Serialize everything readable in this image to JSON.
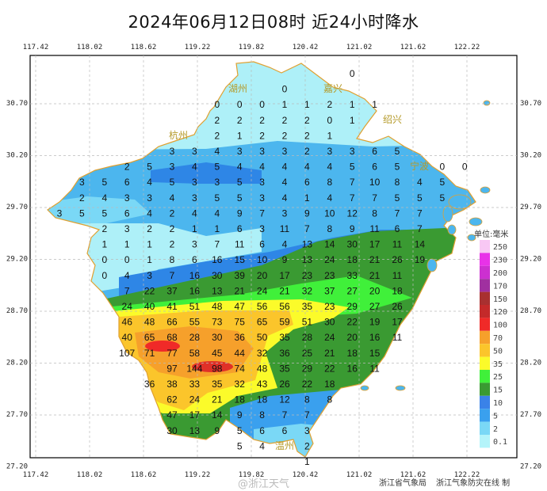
{
  "title": "2024年06月12日08时  近24小时降水",
  "lon_ticks": [
    "117.42",
    "118.02",
    "118.62",
    "119.22",
    "119.82",
    "120.42",
    "121.02",
    "121.62",
    "122.22"
  ],
  "lat_ticks": [
    "30.70",
    "30.20",
    "29.70",
    "29.20",
    "28.70",
    "28.20",
    "27.70",
    "27.20"
  ],
  "cities": [
    {
      "name": "湖州"
    },
    {
      "name": "嘉兴"
    },
    {
      "name": "杭州"
    },
    {
      "name": "绍兴"
    },
    {
      "name": "宁波"
    },
    {
      "name": "温州"
    }
  ],
  "legend": {
    "title": "单位:毫米",
    "items": [
      {
        "label": "250",
        "color": "#f8c8f4"
      },
      {
        "label": "230",
        "color": "#e832e8"
      },
      {
        "label": "200",
        "color": "#cc30d0"
      },
      {
        "label": "170",
        "color": "#a030a0"
      },
      {
        "label": "150",
        "color": "#a83030"
      },
      {
        "label": "120",
        "color": "#c42a2a"
      },
      {
        "label": "100",
        "color": "#f02a28"
      },
      {
        "label": "70",
        "color": "#f6a02b"
      },
      {
        "label": "50",
        "color": "#fbc52b"
      },
      {
        "label": "35",
        "color": "#fbfb2a"
      },
      {
        "label": "25",
        "color": "#40f03a"
      },
      {
        "label": "15",
        "color": "#3a9a32"
      },
      {
        "label": "10",
        "color": "#3a82e8"
      },
      {
        "label": "5",
        "color": "#3aa0ee"
      },
      {
        "label": "2",
        "color": "#7ad8f6"
      },
      {
        "label": "0.1",
        "color": "#b4f4fa"
      }
    ]
  },
  "grid_values": [
    {
      "from": 13,
      "v": [
        0
      ]
    },
    {
      "from": 10,
      "v": [
        0
      ]
    },
    {
      "from": 7,
      "v": [
        0,
        0,
        0,
        1,
        1,
        2,
        1,
        1
      ]
    },
    {
      "from": 7,
      "v": [
        2,
        2,
        2,
        2,
        2,
        0,
        1
      ]
    },
    {
      "from": 7,
      "v": [
        2,
        1,
        2,
        2,
        2,
        1
      ]
    },
    {
      "from": 5,
      "v": [
        3,
        3,
        4,
        3,
        3,
        3,
        2,
        3,
        3,
        6,
        5
      ]
    },
    {
      "from": 3,
      "v": [
        2,
        5,
        3,
        4,
        5,
        4,
        4,
        4,
        4,
        4,
        5,
        6,
        5,
        null,
        0,
        0
      ]
    },
    {
      "from": 1,
      "v": [
        3,
        5,
        6,
        4,
        5,
        3,
        3,
        5,
        3,
        4,
        6,
        8,
        7,
        10,
        8,
        4,
        5
      ]
    },
    {
      "from": 1,
      "v": [
        2,
        4,
        3,
        3,
        4,
        3,
        5,
        5,
        3,
        4,
        1,
        4,
        7,
        7,
        5,
        5,
        5
      ]
    },
    {
      "from": 0,
      "v": [
        3,
        5,
        5,
        6,
        4,
        2,
        4,
        4,
        9,
        7,
        3,
        9,
        10,
        12,
        8,
        7,
        7
      ]
    },
    {
      "from": 2,
      "v": [
        2,
        3,
        2,
        2,
        1,
        1,
        6,
        3,
        11,
        7,
        8,
        9,
        11,
        6,
        7
      ]
    },
    {
      "from": 2,
      "v": [
        1,
        1,
        1,
        2,
        3,
        7,
        11,
        6,
        4,
        13,
        14,
        30,
        17,
        11,
        14
      ]
    },
    {
      "from": 2,
      "v": [
        0,
        0,
        1,
        8,
        6,
        16,
        15,
        10,
        9,
        13,
        24,
        18,
        21,
        26,
        19
      ]
    },
    {
      "from": 2,
      "v": [
        0,
        4,
        3,
        7,
        16,
        30,
        39,
        20,
        17,
        23,
        23,
        33,
        21,
        11
      ]
    },
    {
      "from": 3,
      "v": [
        7,
        22,
        37,
        16,
        13,
        21,
        24,
        21,
        32,
        37,
        27,
        20,
        18
      ]
    },
    {
      "from": 3,
      "v": [
        24,
        40,
        41,
        51,
        48,
        47,
        56,
        56,
        35,
        23,
        29,
        27,
        26
      ]
    },
    {
      "from": 3,
      "v": [
        46,
        48,
        66,
        55,
        73,
        75,
        65,
        59,
        51,
        30,
        22,
        19,
        17
      ]
    },
    {
      "from": 3,
      "v": [
        40,
        65,
        68,
        28,
        30,
        36,
        50,
        35,
        28,
        24,
        20,
        16,
        11
      ]
    },
    {
      "from": 3,
      "v": [
        107,
        71,
        77,
        58,
        45,
        44,
        32,
        36,
        25,
        21,
        18,
        15
      ]
    },
    {
      "from": 5,
      "v": [
        97,
        144,
        98,
        74,
        48,
        35,
        29,
        22,
        16,
        11
      ]
    },
    {
      "from": 4,
      "v": [
        36,
        38,
        33,
        35,
        32,
        43,
        26,
        22,
        18
      ]
    },
    {
      "from": 5,
      "v": [
        62,
        24,
        21,
        18,
        18,
        12,
        8,
        8
      ]
    },
    {
      "from": 5,
      "v": [
        47,
        17,
        14,
        9,
        8,
        7,
        7
      ]
    },
    {
      "from": 5,
      "v": [
        30,
        13,
        9,
        5,
        6,
        6,
        3
      ]
    },
    {
      "from": 8,
      "v": [
        5,
        4,
        null,
        2
      ]
    },
    {
      "from": 11,
      "v": [
        1
      ]
    }
  ],
  "watermark": "@浙江天气",
  "credits": [
    "浙江省气象局",
    "浙江气象防灾在线 制"
  ]
}
